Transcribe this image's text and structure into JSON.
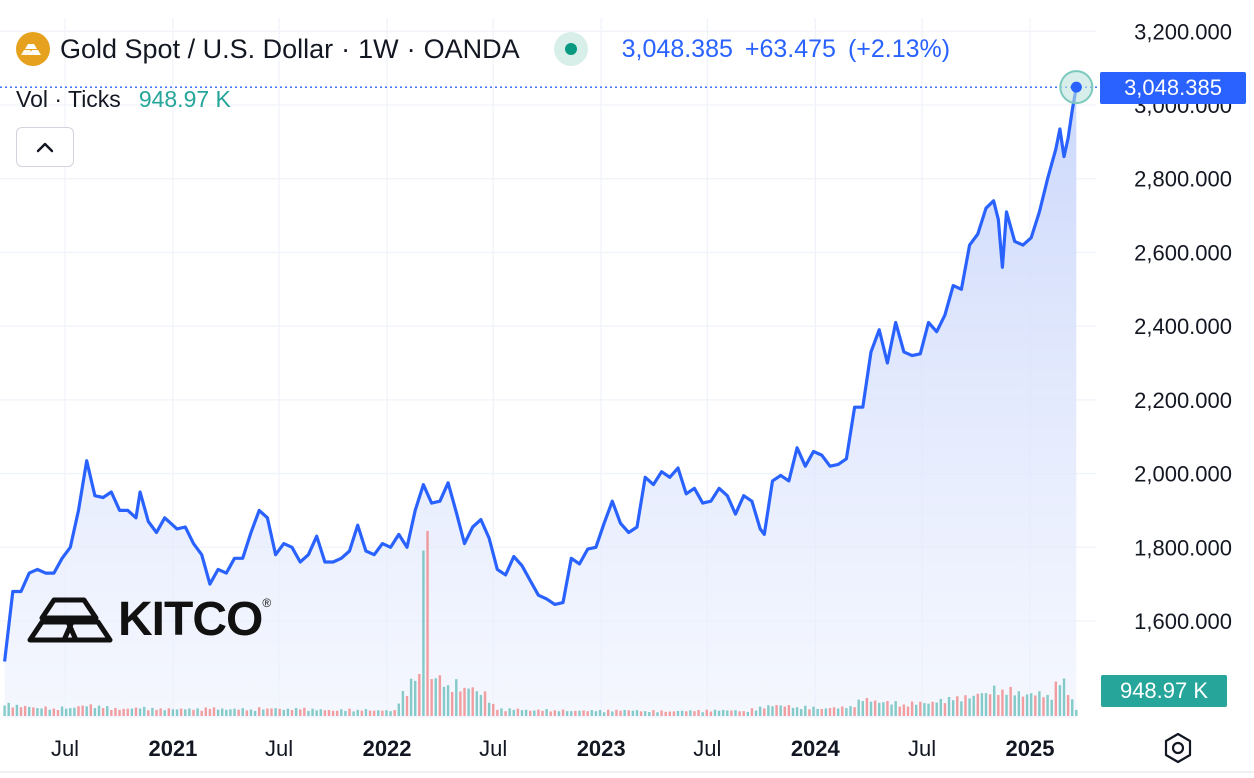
{
  "header": {
    "symbol_title": "Gold Spot / U.S. Dollar",
    "interval": "1W",
    "exchange": "OANDA",
    "last_price": "3,048.385",
    "change": "+63.475",
    "change_pct": "(+2.13%)",
    "volume_label": "Vol · Ticks",
    "volume_value": "948.97 K",
    "separator": "·"
  },
  "price_tag": "3,048.385",
  "volume_tag": "948.97 K",
  "logo": {
    "text": "KITCO",
    "reg": "®"
  },
  "icons": {
    "symbol": "gold-bar-icon",
    "collapse": "chevron-up-icon",
    "settings": "settings-hexagon-icon",
    "live": "live-status-dot-icon"
  },
  "colors": {
    "line": "#2962ff",
    "area_top": "#c9d6fb",
    "vol_up": "#26a69a",
    "vol_down": "#ef5350",
    "price_tag": "#2962ff",
    "volume_tag": "#26a69a",
    "gold": "#e6a11e"
  },
  "chart_data": {
    "type": "area",
    "title": "Gold Spot / U.S. Dollar · 1W · OANDA",
    "ylim": [
      1480,
      3200
    ],
    "y_ticks": [
      1600,
      1800,
      2000,
      2200,
      2400,
      2600,
      2800,
      3000,
      3200
    ],
    "y_tick_labels": [
      "1,600.000",
      "1,800.000",
      "2,000.000",
      "2,200.000",
      "2,400.000",
      "2,600.000",
      "2,800.000",
      "3,000.000",
      "3,200.000"
    ],
    "x_ticks": [
      "2020-07-01",
      "2021-01-01",
      "2021-07-01",
      "2022-01-01",
      "2022-07-01",
      "2023-01-01",
      "2023-07-01",
      "2024-01-01",
      "2024-07-01",
      "2025-01-01"
    ],
    "x_tick_labels": [
      "Jul",
      "2021",
      "Jul",
      "2022",
      "Jul",
      "2023",
      "Jul",
      "2024",
      "Jul",
      "2025"
    ],
    "x_tick_bold": [
      false,
      true,
      false,
      true,
      false,
      true,
      false,
      true,
      false,
      true
    ],
    "grid": true,
    "series": [
      {
        "values": [
          [
            "2020-03-20",
            1490
          ],
          [
            "2020-04-03",
            1680
          ],
          [
            "2020-04-17",
            1680
          ],
          [
            "2020-05-01",
            1730
          ],
          [
            "2020-05-15",
            1740
          ],
          [
            "2020-05-29",
            1730
          ],
          [
            "2020-06-12",
            1730
          ],
          [
            "2020-06-26",
            1770
          ],
          [
            "2020-07-10",
            1800
          ],
          [
            "2020-07-24",
            1900
          ],
          [
            "2020-08-07",
            2035
          ],
          [
            "2020-08-21",
            1940
          ],
          [
            "2020-09-04",
            1935
          ],
          [
            "2020-09-18",
            1950
          ],
          [
            "2020-10-02",
            1900
          ],
          [
            "2020-10-16",
            1900
          ],
          [
            "2020-10-30",
            1880
          ],
          [
            "2020-11-06",
            1950
          ],
          [
            "2020-11-20",
            1870
          ],
          [
            "2020-12-04",
            1840
          ],
          [
            "2020-12-18",
            1880
          ],
          [
            "2021-01-08",
            1850
          ],
          [
            "2021-01-22",
            1855
          ],
          [
            "2021-02-05",
            1810
          ],
          [
            "2021-02-19",
            1780
          ],
          [
            "2021-03-05",
            1700
          ],
          [
            "2021-03-19",
            1740
          ],
          [
            "2021-04-02",
            1730
          ],
          [
            "2021-04-16",
            1770
          ],
          [
            "2021-04-30",
            1770
          ],
          [
            "2021-05-14",
            1840
          ],
          [
            "2021-05-28",
            1900
          ],
          [
            "2021-06-11",
            1880
          ],
          [
            "2021-06-25",
            1780
          ],
          [
            "2021-07-09",
            1810
          ],
          [
            "2021-07-23",
            1800
          ],
          [
            "2021-08-06",
            1760
          ],
          [
            "2021-08-20",
            1780
          ],
          [
            "2021-09-03",
            1830
          ],
          [
            "2021-09-17",
            1760
          ],
          [
            "2021-10-01",
            1760
          ],
          [
            "2021-10-15",
            1770
          ],
          [
            "2021-10-29",
            1790
          ],
          [
            "2021-11-12",
            1860
          ],
          [
            "2021-11-26",
            1790
          ],
          [
            "2021-12-10",
            1780
          ],
          [
            "2021-12-24",
            1810
          ],
          [
            "2022-01-07",
            1800
          ],
          [
            "2022-01-21",
            1835
          ],
          [
            "2022-02-04",
            1800
          ],
          [
            "2022-02-18",
            1900
          ],
          [
            "2022-03-04",
            1970
          ],
          [
            "2022-03-18",
            1920
          ],
          [
            "2022-04-01",
            1925
          ],
          [
            "2022-04-15",
            1975
          ],
          [
            "2022-04-29",
            1895
          ],
          [
            "2022-05-13",
            1810
          ],
          [
            "2022-05-27",
            1855
          ],
          [
            "2022-06-10",
            1875
          ],
          [
            "2022-06-24",
            1825
          ],
          [
            "2022-07-08",
            1740
          ],
          [
            "2022-07-22",
            1725
          ],
          [
            "2022-08-05",
            1775
          ],
          [
            "2022-08-19",
            1750
          ],
          [
            "2022-09-02",
            1710
          ],
          [
            "2022-09-16",
            1670
          ],
          [
            "2022-09-30",
            1660
          ],
          [
            "2022-10-14",
            1645
          ],
          [
            "2022-10-28",
            1650
          ],
          [
            "2022-11-11",
            1770
          ],
          [
            "2022-11-25",
            1755
          ],
          [
            "2022-12-09",
            1795
          ],
          [
            "2022-12-23",
            1800
          ],
          [
            "2023-01-06",
            1865
          ],
          [
            "2023-01-20",
            1925
          ],
          [
            "2023-02-03",
            1865
          ],
          [
            "2023-02-17",
            1840
          ],
          [
            "2023-03-03",
            1855
          ],
          [
            "2023-03-17",
            1990
          ],
          [
            "2023-03-31",
            1970
          ],
          [
            "2023-04-14",
            2005
          ],
          [
            "2023-04-28",
            1990
          ],
          [
            "2023-05-12",
            2015
          ],
          [
            "2023-05-26",
            1945
          ],
          [
            "2023-06-09",
            1960
          ],
          [
            "2023-06-23",
            1920
          ],
          [
            "2023-07-07",
            1925
          ],
          [
            "2023-07-21",
            1960
          ],
          [
            "2023-08-04",
            1940
          ],
          [
            "2023-08-18",
            1890
          ],
          [
            "2023-09-01",
            1940
          ],
          [
            "2023-09-15",
            1925
          ],
          [
            "2023-09-29",
            1850
          ],
          [
            "2023-10-06",
            1835
          ],
          [
            "2023-10-20",
            1980
          ],
          [
            "2023-11-03",
            1995
          ],
          [
            "2023-11-17",
            1980
          ],
          [
            "2023-12-01",
            2070
          ],
          [
            "2023-12-15",
            2020
          ],
          [
            "2023-12-29",
            2060
          ],
          [
            "2024-01-12",
            2050
          ],
          [
            "2024-01-26",
            2020
          ],
          [
            "2024-02-09",
            2025
          ],
          [
            "2024-02-23",
            2040
          ],
          [
            "2024-03-08",
            2180
          ],
          [
            "2024-03-22",
            2180
          ],
          [
            "2024-04-05",
            2330
          ],
          [
            "2024-04-19",
            2390
          ],
          [
            "2024-05-03",
            2300
          ],
          [
            "2024-05-17",
            2410
          ],
          [
            "2024-05-31",
            2330
          ],
          [
            "2024-06-14",
            2320
          ],
          [
            "2024-06-28",
            2325
          ],
          [
            "2024-07-12",
            2410
          ],
          [
            "2024-07-26",
            2385
          ],
          [
            "2024-08-09",
            2430
          ],
          [
            "2024-08-23",
            2510
          ],
          [
            "2024-09-06",
            2500
          ],
          [
            "2024-09-20",
            2620
          ],
          [
            "2024-10-04",
            2650
          ],
          [
            "2024-10-18",
            2720
          ],
          [
            "2024-10-31",
            2740
          ],
          [
            "2024-11-08",
            2690
          ],
          [
            "2024-11-15",
            2560
          ],
          [
            "2024-11-22",
            2710
          ],
          [
            "2024-12-06",
            2630
          ],
          [
            "2024-12-20",
            2620
          ],
          [
            "2025-01-03",
            2640
          ],
          [
            "2025-01-17",
            2710
          ],
          [
            "2025-01-31",
            2800
          ],
          [
            "2025-02-14",
            2880
          ],
          [
            "2025-02-21",
            2935
          ],
          [
            "2025-02-28",
            2860
          ],
          [
            "2025-03-07",
            2910
          ],
          [
            "2025-03-14",
            2985
          ],
          [
            "2025-03-21",
            3048.385
          ]
        ]
      }
    ],
    "volume": {
      "ylim": [
        0,
        2000
      ],
      "values": [
        [
          "2020-03-20",
          120,
          "up"
        ],
        [
          "2020-04-17",
          100,
          "down"
        ],
        [
          "2020-05-15",
          90,
          "up"
        ],
        [
          "2020-06-12",
          85,
          "down"
        ],
        [
          "2020-07-10",
          90,
          "up"
        ],
        [
          "2020-08-07",
          110,
          "up"
        ],
        [
          "2020-09-04",
          90,
          "down"
        ],
        [
          "2020-10-02",
          70,
          "down"
        ],
        [
          "2020-11-06",
          85,
          "up"
        ],
        [
          "2020-12-04",
          70,
          "down"
        ],
        [
          "2021-01-08",
          75,
          "up"
        ],
        [
          "2021-02-05",
          70,
          "down"
        ],
        [
          "2021-03-05",
          80,
          "down"
        ],
        [
          "2021-04-02",
          70,
          "up"
        ],
        [
          "2021-05-14",
          75,
          "up"
        ],
        [
          "2021-06-11",
          85,
          "down"
        ],
        [
          "2021-07-09",
          70,
          "up"
        ],
        [
          "2021-08-06",
          75,
          "down"
        ],
        [
          "2021-09-03",
          65,
          "up"
        ],
        [
          "2021-10-01",
          60,
          "down"
        ],
        [
          "2021-11-12",
          70,
          "up"
        ],
        [
          "2021-12-10",
          60,
          "down"
        ],
        [
          "2022-01-07",
          55,
          "up"
        ],
        [
          "2022-02-18",
          400,
          "up"
        ],
        [
          "2022-03-04",
          1880,
          "up"
        ],
        [
          "2022-03-18",
          420,
          "down"
        ],
        [
          "2022-04-15",
          350,
          "up"
        ],
        [
          "2022-05-13",
          320,
          "down"
        ],
        [
          "2022-06-10",
          240,
          "up"
        ],
        [
          "2022-07-08",
          70,
          "down"
        ],
        [
          "2022-08-05",
          70,
          "up"
        ],
        [
          "2022-09-02",
          60,
          "down"
        ],
        [
          "2022-10-14",
          65,
          "down"
        ],
        [
          "2022-11-11",
          55,
          "up"
        ],
        [
          "2022-12-23",
          55,
          "up"
        ],
        [
          "2023-02-03",
          60,
          "down"
        ],
        [
          "2023-03-17",
          55,
          "up"
        ],
        [
          "2023-04-28",
          50,
          "down"
        ],
        [
          "2023-06-09",
          55,
          "down"
        ],
        [
          "2023-07-21",
          60,
          "up"
        ],
        [
          "2023-09-01",
          55,
          "down"
        ],
        [
          "2023-10-20",
          110,
          "up"
        ],
        [
          "2023-12-01",
          100,
          "up"
        ],
        [
          "2024-01-12",
          80,
          "down"
        ],
        [
          "2024-02-23",
          90,
          "up"
        ],
        [
          "2024-03-22",
          170,
          "up"
        ],
        [
          "2024-04-19",
          150,
          "up"
        ],
        [
          "2024-05-31",
          130,
          "down"
        ],
        [
          "2024-07-12",
          140,
          "up"
        ],
        [
          "2024-08-23",
          180,
          "up"
        ],
        [
          "2024-09-20",
          200,
          "up"
        ],
        [
          "2024-10-18",
          260,
          "up"
        ],
        [
          "2024-11-15",
          300,
          "down"
        ],
        [
          "2024-12-20",
          220,
          "down"
        ],
        [
          "2025-01-31",
          240,
          "up"
        ],
        [
          "2025-02-21",
          350,
          "up"
        ],
        [
          "2025-03-14",
          190,
          "up"
        ],
        [
          "2025-03-21",
          70,
          "up"
        ]
      ]
    }
  }
}
